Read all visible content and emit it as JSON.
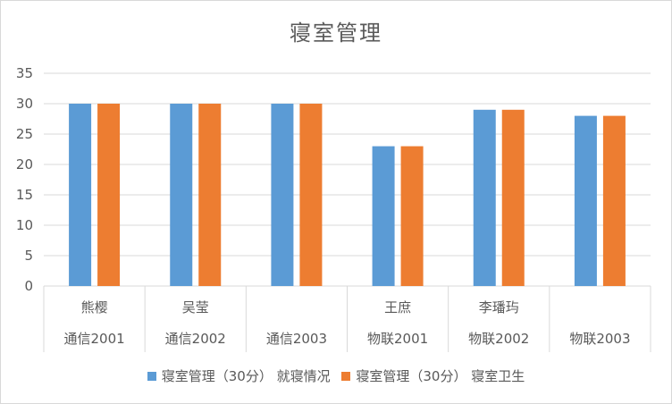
{
  "chart_data": {
    "type": "bar",
    "title": "寝室管理",
    "categories": [
      {
        "name": "熊樱",
        "class": "通信2001"
      },
      {
        "name": "吴莹",
        "class": "通信2002"
      },
      {
        "name": "",
        "class": "通信2003"
      },
      {
        "name": "王庶",
        "class": "物联2001"
      },
      {
        "name": "李璠玙",
        "class": "物联2002"
      },
      {
        "name": "",
        "class": "物联2003"
      }
    ],
    "series": [
      {
        "name": "寝室管理（30分） 就寝情况",
        "color": "#5b9bd5",
        "values": [
          30,
          30,
          30,
          23,
          29,
          28
        ]
      },
      {
        "name": "寝室管理（30分） 寝室卫生",
        "color": "#ed7d31",
        "values": [
          30,
          30,
          30,
          23,
          29,
          28
        ]
      }
    ],
    "ylim": [
      0,
      35
    ],
    "yticks": [
      0,
      5,
      10,
      15,
      20,
      25,
      30,
      35
    ],
    "grid": true,
    "legend": "bottom"
  }
}
